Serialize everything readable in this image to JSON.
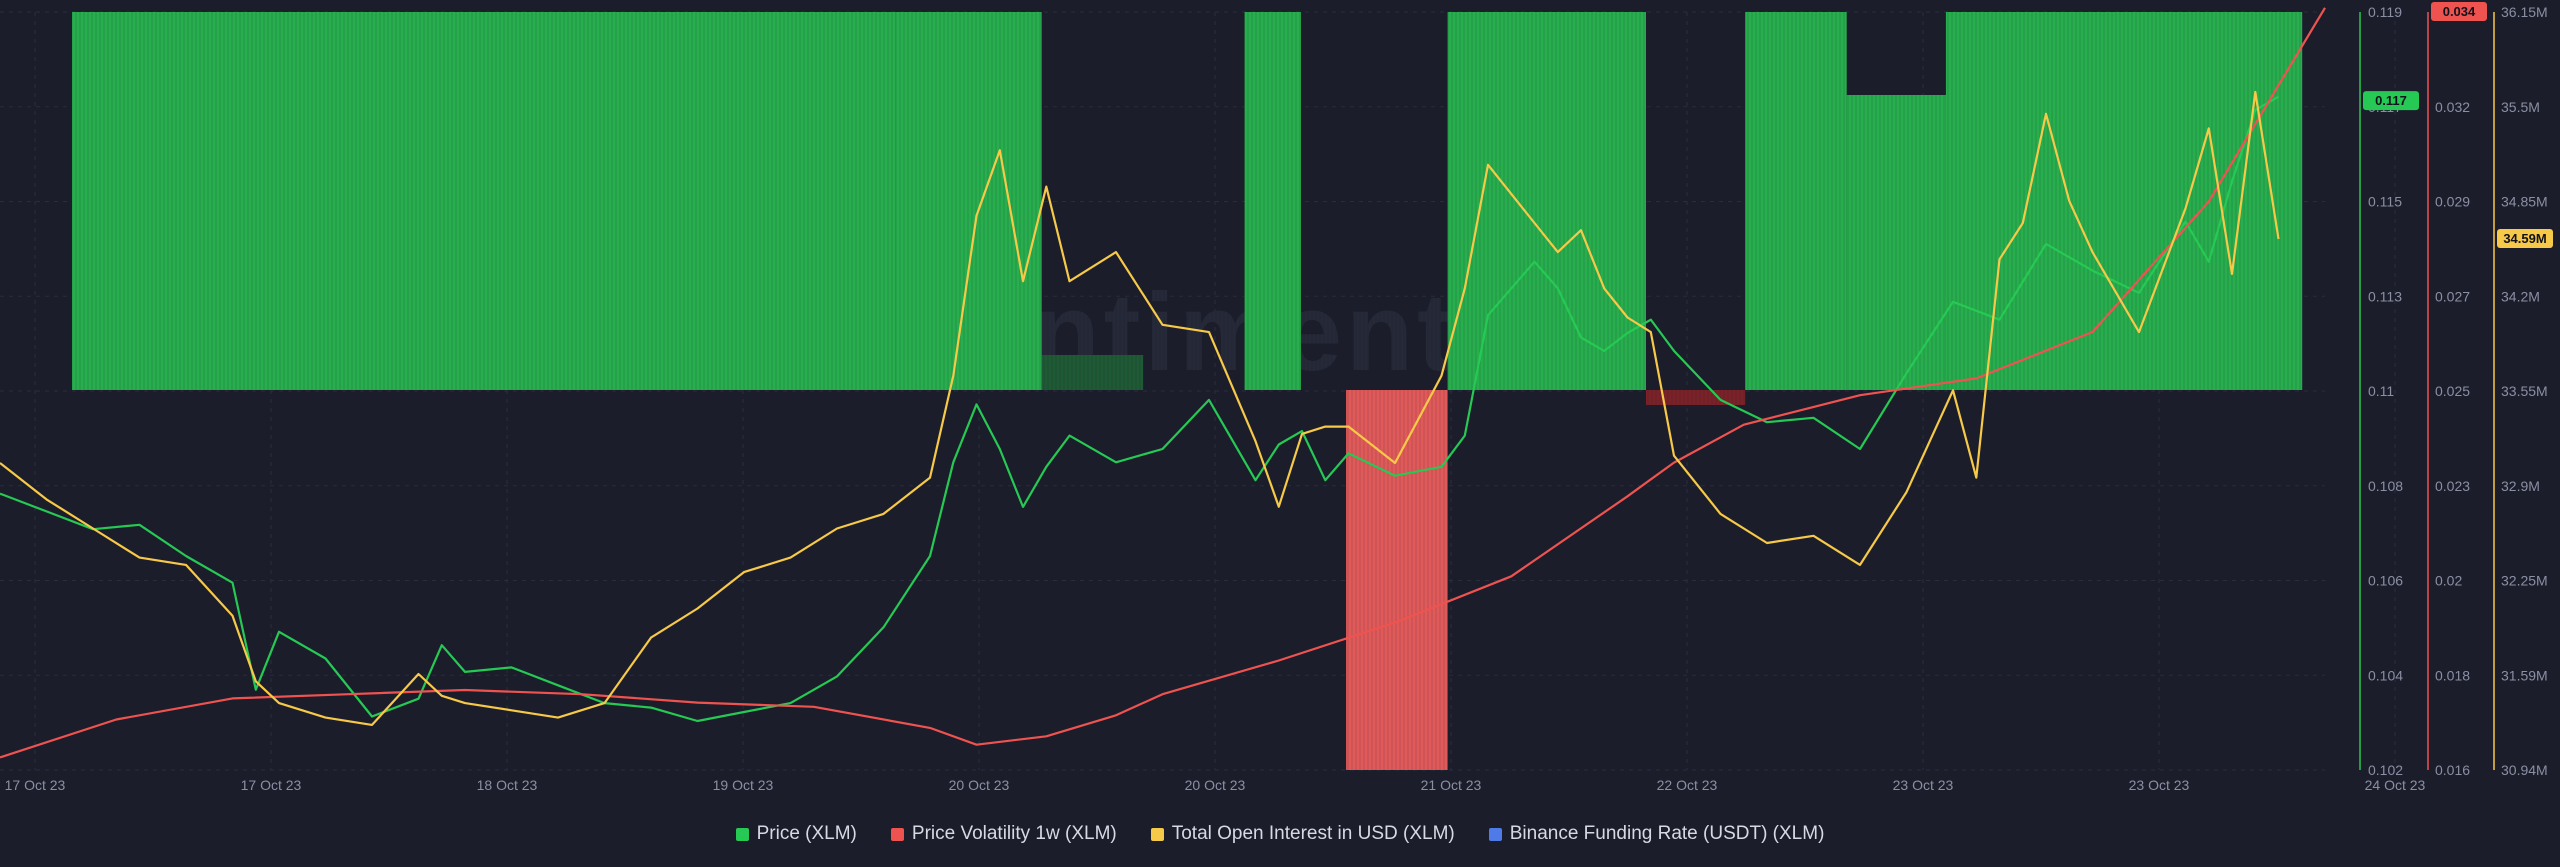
{
  "chart_data": {
    "type": "line",
    "watermark": "santiment",
    "x_ticks": [
      "17 Oct 23",
      "17 Oct 23",
      "18 Oct 23",
      "19 Oct 23",
      "20 Oct 23",
      "20 Oct 23",
      "21 Oct 23",
      "22 Oct 23",
      "23 Oct 23",
      "23 Oct 23",
      "24 Oct 23"
    ],
    "axes": {
      "price": {
        "ticks": [
          "0.119",
          "0.117",
          "0.115",
          "0.113",
          "0.11",
          "0.108",
          "0.106",
          "0.104",
          "0.102"
        ],
        "ylim": [
          0.102,
          0.119
        ],
        "current": "0.117",
        "color": "#26c953"
      },
      "volatility": {
        "ticks": [
          "0.034",
          "0.032",
          "0.029",
          "0.027",
          "0.025",
          "0.023",
          "0.02",
          "0.018",
          "0.016"
        ],
        "ylim": [
          0.016,
          0.034
        ],
        "current": "0.034",
        "color": "#ef5350"
      },
      "open_interest": {
        "ticks": [
          "36.15M",
          "35.5M",
          "34.85M",
          "34.2M",
          "33.55M",
          "32.9M",
          "32.25M",
          "31.59M",
          "30.94M"
        ],
        "ylim": [
          30.94,
          36.15
        ],
        "current": "34.59M",
        "color": "#f7c948"
      }
    },
    "series": [
      {
        "name": "Price (XLM)",
        "axis": "price",
        "color": "#26c953",
        "x": [
          0,
          0.02,
          0.04,
          0.06,
          0.08,
          0.1,
          0.11,
          0.12,
          0.14,
          0.16,
          0.18,
          0.19,
          0.2,
          0.22,
          0.24,
          0.26,
          0.28,
          0.3,
          0.32,
          0.34,
          0.36,
          0.38,
          0.4,
          0.41,
          0.42,
          0.43,
          0.44,
          0.45,
          0.46,
          0.48,
          0.5,
          0.52,
          0.54,
          0.55,
          0.56,
          0.57,
          0.58,
          0.6,
          0.62,
          0.63,
          0.64,
          0.66,
          0.67,
          0.68,
          0.69,
          0.7,
          0.71,
          0.72,
          0.74,
          0.76,
          0.78,
          0.8,
          0.82,
          0.84,
          0.86,
          0.88,
          0.9,
          0.92,
          0.94,
          0.95,
          0.96,
          0.97,
          0.98
        ],
        "values": [
          0.1082,
          0.1078,
          0.1074,
          0.1075,
          0.1068,
          0.1062,
          0.1038,
          0.1051,
          0.1045,
          0.1032,
          0.1036,
          0.1048,
          0.1042,
          0.1043,
          0.1039,
          0.1035,
          0.1034,
          0.1031,
          0.1033,
          0.1035,
          0.1041,
          0.1052,
          0.1068,
          0.1089,
          0.1102,
          0.1092,
          0.1079,
          0.1088,
          0.1095,
          0.1089,
          0.1092,
          0.1103,
          0.1085,
          0.1093,
          0.1096,
          0.1085,
          0.1091,
          0.1086,
          0.1088,
          0.1095,
          0.1122,
          0.1134,
          0.1128,
          0.1117,
          0.1114,
          0.1118,
          0.1121,
          0.1114,
          0.1103,
          0.1098,
          0.1099,
          0.1092,
          0.1109,
          0.1125,
          0.1121,
          0.1138,
          0.1132,
          0.1127,
          0.1143,
          0.1134,
          0.1152,
          0.1168,
          0.1171
        ]
      },
      {
        "name": "Price Volatility 1w (XLM)",
        "axis": "volatility",
        "color": "#ef5350",
        "x": [
          0,
          0.05,
          0.1,
          0.15,
          0.2,
          0.25,
          0.3,
          0.35,
          0.4,
          0.42,
          0.45,
          0.48,
          0.5,
          0.55,
          0.6,
          0.65,
          0.7,
          0.72,
          0.75,
          0.8,
          0.85,
          0.9,
          0.95,
          1.0
        ],
        "values": [
          0.0163,
          0.0172,
          0.0177,
          0.0178,
          0.0179,
          0.0178,
          0.0176,
          0.0175,
          0.017,
          0.0166,
          0.0168,
          0.0173,
          0.0178,
          0.0186,
          0.0195,
          0.0206,
          0.0225,
          0.0233,
          0.0242,
          0.0249,
          0.0253,
          0.0264,
          0.0295,
          0.0341
        ]
      },
      {
        "name": "Total Open Interest in USD (XLM)",
        "axis": "open_interest",
        "color": "#f7c948",
        "x": [
          0,
          0.02,
          0.04,
          0.06,
          0.08,
          0.1,
          0.11,
          0.12,
          0.14,
          0.16,
          0.18,
          0.19,
          0.2,
          0.22,
          0.24,
          0.26,
          0.28,
          0.3,
          0.32,
          0.34,
          0.36,
          0.38,
          0.4,
          0.41,
          0.42,
          0.43,
          0.44,
          0.45,
          0.46,
          0.48,
          0.5,
          0.52,
          0.54,
          0.55,
          0.56,
          0.57,
          0.58,
          0.6,
          0.62,
          0.63,
          0.64,
          0.66,
          0.67,
          0.68,
          0.69,
          0.7,
          0.71,
          0.72,
          0.74,
          0.76,
          0.78,
          0.8,
          0.82,
          0.84,
          0.85,
          0.86,
          0.87,
          0.88,
          0.89,
          0.9,
          0.92,
          0.94,
          0.95,
          0.96,
          0.97,
          0.98
        ],
        "values": [
          33.05,
          32.8,
          32.6,
          32.4,
          32.35,
          32.0,
          31.55,
          31.4,
          31.3,
          31.25,
          31.6,
          31.45,
          31.4,
          31.35,
          31.3,
          31.4,
          31.85,
          32.05,
          32.3,
          32.4,
          32.6,
          32.7,
          32.95,
          33.65,
          34.75,
          35.2,
          34.3,
          34.95,
          34.3,
          34.5,
          34.0,
          33.95,
          33.2,
          32.75,
          33.25,
          33.3,
          33.3,
          33.05,
          33.65,
          34.25,
          35.1,
          34.7,
          34.5,
          34.65,
          34.25,
          34.05,
          33.95,
          33.1,
          32.7,
          32.5,
          32.55,
          32.35,
          32.85,
          33.55,
          32.95,
          34.45,
          34.7,
          35.45,
          34.85,
          34.5,
          33.95,
          34.8,
          35.35,
          34.35,
          35.6,
          34.59
        ]
      },
      {
        "name": "Binance Funding Rate (USDT) (XLM)",
        "axis": "funding",
        "color": "#4f7be8",
        "x": [],
        "values": []
      }
    ],
    "funding_bars": [
      {
        "x0": 0.0,
        "x1": 0.365,
        "top": "full",
        "color": "#27ae4d"
      },
      {
        "x0": 0.365,
        "x1": 0.4,
        "top": "full",
        "color": "#27ae4d"
      },
      {
        "x0": 0.4,
        "x1": 0.43,
        "top": "full",
        "color": "#27ae4d"
      },
      {
        "x0": 0.43,
        "x1": 0.475,
        "top": "small",
        "color": "#1e5a34"
      },
      {
        "x0": 0.52,
        "x1": 0.545,
        "top": "full",
        "color": "#27ae4d"
      },
      {
        "x0": 0.565,
        "x1": 0.61,
        "top": "neg_full",
        "color": "#e05a5a"
      },
      {
        "x0": 0.61,
        "x1": 0.698,
        "top": "full",
        "color": "#27ae4d"
      },
      {
        "x0": 0.698,
        "x1": 0.742,
        "top": "neg_small",
        "color": "#7a2228"
      },
      {
        "x0": 0.742,
        "x1": 0.787,
        "top": "full",
        "color": "#27ae4d"
      },
      {
        "x0": 0.787,
        "x1": 0.831,
        "top": "mid",
        "color": "#27ae4d"
      },
      {
        "x0": 0.831,
        "x1": 0.989,
        "top": "full",
        "color": "#27ae4d"
      }
    ],
    "legend_position": "bottom-center",
    "grid": true
  }
}
